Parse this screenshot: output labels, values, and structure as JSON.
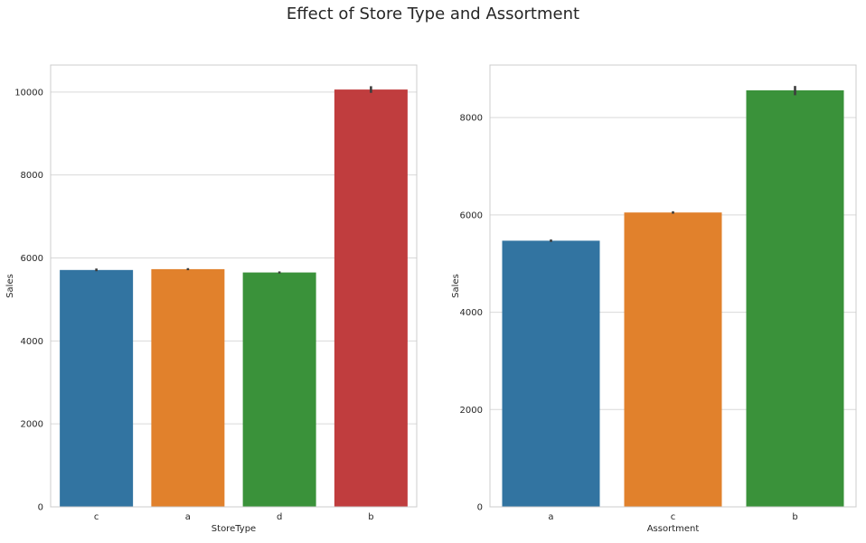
{
  "figure": {
    "title": "Effect of Store Type and Assortment"
  },
  "chart_data": [
    {
      "type": "bar",
      "categories": [
        "c",
        "a",
        "d",
        "b"
      ],
      "values": [
        5710,
        5730,
        5650,
        10060
      ],
      "error": [
        [
          5680,
          5745
        ],
        [
          5705,
          5755
        ],
        [
          5625,
          5675
        ],
        [
          9980,
          10140
        ]
      ],
      "colors": [
        "#3274a1",
        "#e1812c",
        "#3a923a",
        "#c03d3e"
      ],
      "xlabel": "StoreType",
      "ylabel": "Sales",
      "ylim": [
        0,
        10650
      ],
      "yticks": [
        0,
        2000,
        4000,
        6000,
        8000,
        10000
      ],
      "grid": true
    },
    {
      "type": "bar",
      "categories": [
        "a",
        "c",
        "b"
      ],
      "values": [
        5470,
        6050,
        8560
      ],
      "error": [
        [
          5445,
          5495
        ],
        [
          6025,
          6075
        ],
        [
          8460,
          8650
        ]
      ],
      "colors": [
        "#3274a1",
        "#e1812c",
        "#3a923a"
      ],
      "xlabel": "Assortment",
      "ylabel": "Sales",
      "ylim": [
        0,
        9080
      ],
      "yticks": [
        0,
        2000,
        4000,
        6000,
        8000
      ],
      "grid": true
    }
  ]
}
